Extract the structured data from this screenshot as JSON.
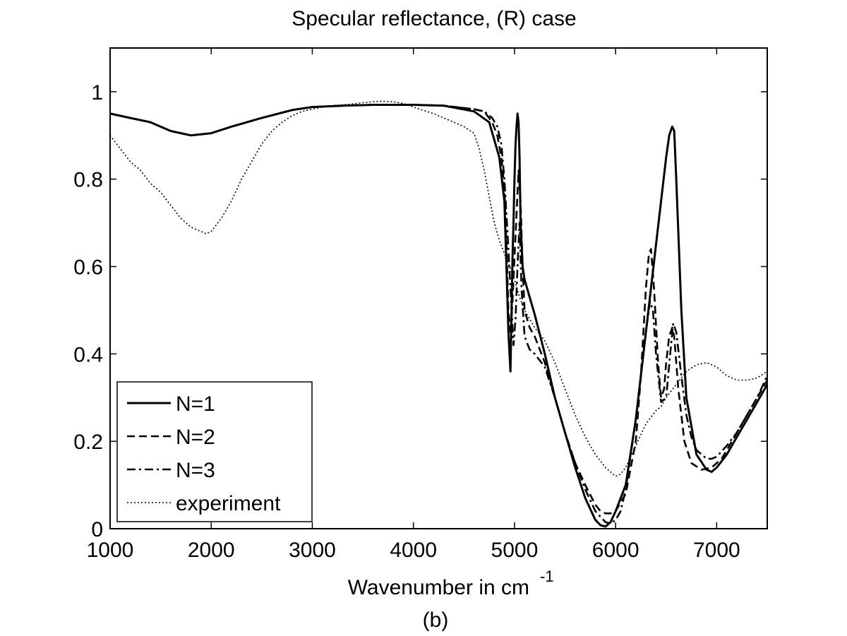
{
  "chart_data": {
    "type": "line",
    "title": "Specular reflectance, (R) case",
    "xlabel": "Wavenumber in cm",
    "xlabel_superscript": "-1",
    "caption": "(b)",
    "xlim": [
      1000,
      7500
    ],
    "ylim": [
      0,
      1.1
    ],
    "xticks": [
      1000,
      2000,
      3000,
      4000,
      5000,
      6000,
      7000
    ],
    "xtick_labels": [
      "1000",
      "2000",
      "3000",
      "4000",
      "5000",
      "6000",
      "7000"
    ],
    "yticks": [
      0,
      0.2,
      0.4,
      0.6,
      0.8,
      1.0
    ],
    "ytick_labels": [
      "0",
      "0.2",
      "0.4",
      "0.6",
      "0.8",
      "1"
    ],
    "grid": false,
    "legend_position": "bottom-left",
    "series": [
      {
        "name": "N=1",
        "style": "solid",
        "x": [
          1000,
          1200,
          1400,
          1600,
          1800,
          2000,
          2200,
          2500,
          2800,
          3000,
          3300,
          3600,
          4000,
          4300,
          4600,
          4750,
          4850,
          4900,
          4920,
          4940,
          4960,
          4970,
          4980,
          4990,
          5000,
          5010,
          5020,
          5030,
          5040,
          5050,
          5060,
          5080,
          5100,
          5150,
          5200,
          5300,
          5400,
          5500,
          5600,
          5700,
          5800,
          5850,
          5900,
          5950,
          6000,
          6100,
          6200,
          6300,
          6400,
          6450,
          6500,
          6530,
          6560,
          6580,
          6600,
          6650,
          6700,
          6800,
          6900,
          6950,
          7000,
          7100,
          7200,
          7300,
          7400,
          7500
        ],
        "y": [
          0.95,
          0.94,
          0.93,
          0.91,
          0.9,
          0.905,
          0.92,
          0.94,
          0.958,
          0.965,
          0.968,
          0.97,
          0.97,
          0.968,
          0.955,
          0.93,
          0.85,
          0.75,
          0.6,
          0.45,
          0.36,
          0.48,
          0.62,
          0.7,
          0.8,
          0.88,
          0.92,
          0.95,
          0.93,
          0.85,
          0.7,
          0.6,
          0.57,
          0.53,
          0.49,
          0.4,
          0.3,
          0.22,
          0.14,
          0.07,
          0.02,
          0.008,
          0.005,
          0.015,
          0.04,
          0.1,
          0.25,
          0.45,
          0.65,
          0.75,
          0.85,
          0.9,
          0.92,
          0.91,
          0.8,
          0.5,
          0.3,
          0.17,
          0.135,
          0.13,
          0.14,
          0.17,
          0.21,
          0.25,
          0.29,
          0.33
        ]
      },
      {
        "name": "N=2",
        "style": "dashed",
        "x": [
          1000,
          1200,
          1400,
          1600,
          1800,
          2000,
          2200,
          2500,
          2800,
          3000,
          3300,
          3600,
          4000,
          4300,
          4600,
          4700,
          4780,
          4830,
          4870,
          4900,
          4920,
          4940,
          4960,
          4980,
          5000,
          5020,
          5040,
          5060,
          5080,
          5100,
          5150,
          5200,
          5300,
          5400,
          5500,
          5600,
          5700,
          5800,
          5850,
          5900,
          5950,
          6000,
          6100,
          6200,
          6250,
          6300,
          6330,
          6350,
          6380,
          6420,
          6450,
          6480,
          6500,
          6530,
          6560,
          6580,
          6620,
          6680,
          6750,
          6850,
          6950,
          7050,
          7150,
          7250,
          7350,
          7500
        ],
        "y": [
          0.95,
          0.94,
          0.93,
          0.91,
          0.9,
          0.905,
          0.92,
          0.94,
          0.958,
          0.965,
          0.968,
          0.97,
          0.97,
          0.968,
          0.96,
          0.955,
          0.93,
          0.9,
          0.85,
          0.78,
          0.65,
          0.5,
          0.45,
          0.52,
          0.62,
          0.72,
          0.82,
          0.75,
          0.6,
          0.5,
          0.46,
          0.44,
          0.38,
          0.3,
          0.22,
          0.15,
          0.1,
          0.055,
          0.04,
          0.035,
          0.035,
          0.04,
          0.08,
          0.2,
          0.35,
          0.55,
          0.63,
          0.64,
          0.55,
          0.38,
          0.3,
          0.32,
          0.38,
          0.44,
          0.46,
          0.44,
          0.32,
          0.2,
          0.15,
          0.135,
          0.14,
          0.16,
          0.2,
          0.24,
          0.28,
          0.34
        ]
      },
      {
        "name": "N=3",
        "style": "dashdot",
        "x": [
          1000,
          1200,
          1400,
          1600,
          1800,
          2000,
          2200,
          2500,
          2800,
          3000,
          3300,
          3600,
          4000,
          4300,
          4600,
          4700,
          4780,
          4830,
          4870,
          4900,
          4930,
          4960,
          4990,
          5010,
          5030,
          5050,
          5070,
          5100,
          5150,
          5200,
          5300,
          5400,
          5500,
          5600,
          5700,
          5800,
          5900,
          5950,
          6000,
          6050,
          6100,
          6150,
          6200,
          6250,
          6300,
          6340,
          6370,
          6400,
          6450,
          6500,
          6540,
          6570,
          6600,
          6650,
          6700,
          6750,
          6800,
          6900,
          6950,
          7000,
          7100,
          7200,
          7300,
          7400,
          7500
        ],
        "y": [
          0.95,
          0.94,
          0.93,
          0.91,
          0.9,
          0.905,
          0.92,
          0.94,
          0.958,
          0.965,
          0.968,
          0.97,
          0.97,
          0.968,
          0.96,
          0.955,
          0.94,
          0.92,
          0.88,
          0.8,
          0.68,
          0.55,
          0.42,
          0.48,
          0.6,
          0.7,
          0.55,
          0.44,
          0.41,
          0.4,
          0.37,
          0.3,
          0.22,
          0.15,
          0.09,
          0.04,
          0.015,
          0.012,
          0.02,
          0.04,
          0.09,
          0.17,
          0.25,
          0.35,
          0.45,
          0.52,
          0.5,
          0.4,
          0.29,
          0.3,
          0.4,
          0.47,
          0.45,
          0.35,
          0.26,
          0.21,
          0.18,
          0.16,
          0.16,
          0.165,
          0.19,
          0.22,
          0.26,
          0.3,
          0.35
        ]
      },
      {
        "name": "experiment",
        "style": "dotted",
        "x": [
          1000,
          1100,
          1200,
          1300,
          1400,
          1500,
          1600,
          1700,
          1800,
          1900,
          1950,
          2000,
          2100,
          2200,
          2300,
          2400,
          2500,
          2600,
          2700,
          2800,
          2900,
          3000,
          3100,
          3200,
          3300,
          3400,
          3500,
          3600,
          3700,
          3800,
          3900,
          4000,
          4100,
          4200,
          4300,
          4400,
          4500,
          4600,
          4650,
          4700,
          4750,
          4800,
          4850,
          4900,
          4950,
          5000,
          5050,
          5100,
          5200,
          5300,
          5400,
          5500,
          5600,
          5700,
          5800,
          5900,
          6000,
          6050,
          6100,
          6200,
          6300,
          6400,
          6450,
          6500,
          6600,
          6700,
          6800,
          6900,
          7000,
          7100,
          7200,
          7300,
          7400,
          7500
        ],
        "y": [
          0.9,
          0.87,
          0.84,
          0.82,
          0.79,
          0.77,
          0.74,
          0.71,
          0.69,
          0.68,
          0.675,
          0.68,
          0.71,
          0.75,
          0.8,
          0.84,
          0.88,
          0.91,
          0.93,
          0.945,
          0.955,
          0.96,
          0.965,
          0.968,
          0.97,
          0.972,
          0.975,
          0.977,
          0.978,
          0.977,
          0.973,
          0.965,
          0.957,
          0.95,
          0.94,
          0.93,
          0.92,
          0.905,
          0.87,
          0.82,
          0.76,
          0.7,
          0.66,
          0.63,
          0.6,
          0.57,
          0.53,
          0.5,
          0.46,
          0.43,
          0.38,
          0.32,
          0.26,
          0.21,
          0.17,
          0.14,
          0.12,
          0.125,
          0.14,
          0.19,
          0.24,
          0.27,
          0.28,
          0.3,
          0.33,
          0.36,
          0.375,
          0.38,
          0.37,
          0.35,
          0.34,
          0.34,
          0.345,
          0.36
        ]
      }
    ]
  }
}
